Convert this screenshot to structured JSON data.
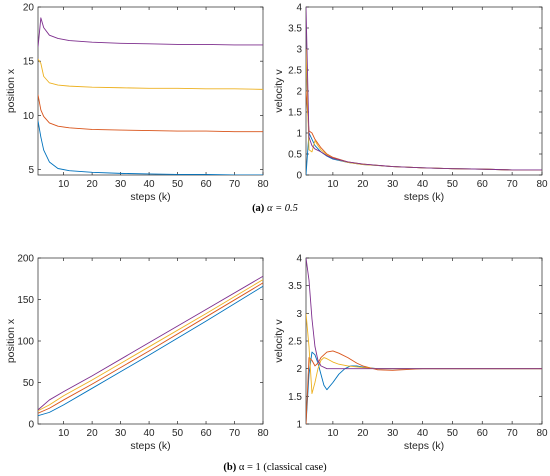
{
  "colors": {
    "series1": "#0072BD",
    "series2": "#D95319",
    "series3": "#EDB120",
    "series4": "#7E2F8E"
  },
  "captions": {
    "a_bold": "(a)",
    "a_text": " α = 0.5",
    "b_bold": "(b)",
    "b_text": " α = 1 (classical case)"
  },
  "chart_data": [
    {
      "id": "a-position",
      "type": "line",
      "xlabel": "steps (k)",
      "ylabel": "position x",
      "xlim": [
        1,
        80
      ],
      "ylim": [
        4.5,
        20
      ],
      "xticks": [
        10,
        20,
        30,
        40,
        50,
        60,
        70,
        80
      ],
      "yticks": [
        5,
        10,
        15,
        20
      ],
      "series": [
        {
          "x": [
            1,
            2,
            3,
            5,
            8,
            12,
            20,
            30,
            40,
            50,
            60,
            70,
            80
          ],
          "values": [
            9.5,
            8.0,
            6.8,
            5.7,
            5.1,
            4.9,
            4.75,
            4.65,
            4.6,
            4.55,
            4.55,
            4.5,
            4.5
          ]
        },
        {
          "x": [
            1,
            2,
            3,
            5,
            8,
            12,
            20,
            30,
            40,
            50,
            60,
            70,
            80
          ],
          "values": [
            11.9,
            10.5,
            9.9,
            9.3,
            9.0,
            8.85,
            8.7,
            8.65,
            8.6,
            8.55,
            8.55,
            8.5,
            8.5
          ]
        },
        {
          "x": [
            1,
            2,
            3,
            5,
            8,
            12,
            20,
            30,
            40,
            50,
            60,
            70,
            80
          ],
          "values": [
            15.2,
            14.8,
            13.6,
            13.0,
            12.8,
            12.7,
            12.6,
            12.55,
            12.5,
            12.5,
            12.45,
            12.45,
            12.4
          ]
        },
        {
          "x": [
            1,
            2,
            3,
            5,
            8,
            12,
            20,
            30,
            40,
            50,
            60,
            70,
            80
          ],
          "values": [
            16.3,
            19.0,
            18.1,
            17.4,
            17.1,
            16.9,
            16.75,
            16.65,
            16.6,
            16.55,
            16.55,
            16.5,
            16.5
          ]
        }
      ]
    },
    {
      "id": "a-velocity",
      "type": "line",
      "xlabel": "steps (k)",
      "ylabel": "velocity v",
      "xlim": [
        1,
        80
      ],
      "ylim": [
        0,
        4
      ],
      "xticks": [
        10,
        20,
        30,
        40,
        50,
        60,
        70,
        80
      ],
      "yticks": [
        0,
        0.5,
        1,
        1.5,
        2,
        2.5,
        3,
        3.5,
        4
      ],
      "series": [
        {
          "x": [
            1,
            2,
            3,
            4,
            6,
            8,
            10,
            15,
            20,
            30,
            40,
            50,
            60,
            70,
            80
          ],
          "values": [
            0.0,
            1.0,
            0.85,
            0.7,
            0.55,
            0.45,
            0.38,
            0.3,
            0.25,
            0.2,
            0.17,
            0.15,
            0.14,
            0.12,
            0.12
          ]
        },
        {
          "x": [
            1,
            2,
            3,
            4,
            6,
            8,
            10,
            15,
            20,
            30,
            40,
            50,
            60,
            70,
            80
          ],
          "values": [
            2.0,
            1.05,
            1.0,
            0.85,
            0.65,
            0.5,
            0.42,
            0.31,
            0.26,
            0.2,
            0.17,
            0.15,
            0.14,
            0.12,
            0.12
          ]
        },
        {
          "x": [
            1,
            2,
            3,
            4,
            5,
            6,
            8,
            10,
            15,
            20,
            30,
            40,
            50,
            60,
            70,
            80
          ],
          "values": [
            3.0,
            0.6,
            0.55,
            0.82,
            0.7,
            0.6,
            0.48,
            0.4,
            0.3,
            0.25,
            0.2,
            0.17,
            0.15,
            0.14,
            0.12,
            0.12
          ]
        },
        {
          "x": [
            1,
            2,
            3,
            4,
            6,
            8,
            10,
            15,
            20,
            30,
            40,
            50,
            60,
            70,
            80
          ],
          "values": [
            4.0,
            0.9,
            0.7,
            0.62,
            0.55,
            0.46,
            0.4,
            0.31,
            0.26,
            0.2,
            0.17,
            0.15,
            0.14,
            0.12,
            0.12
          ]
        }
      ]
    },
    {
      "id": "b-position",
      "type": "line",
      "xlabel": "steps (k)",
      "ylabel": "position x",
      "xlim": [
        1,
        80
      ],
      "ylim": [
        0,
        200
      ],
      "xticks": [
        10,
        20,
        30,
        40,
        50,
        60,
        70,
        80
      ],
      "yticks": [
        0,
        50,
        100,
        150,
        200
      ],
      "series": [
        {
          "x": [
            1,
            5,
            10,
            20,
            40,
            60,
            80
          ],
          "values": [
            10,
            14,
            23,
            43,
            83,
            124,
            166
          ]
        },
        {
          "x": [
            1,
            5,
            10,
            20,
            40,
            60,
            80
          ],
          "values": [
            13,
            19,
            29,
            48,
            88,
            129,
            170
          ]
        },
        {
          "x": [
            1,
            5,
            10,
            20,
            40,
            60,
            80
          ],
          "values": [
            16,
            23,
            34,
            53,
            93,
            133,
            174
          ]
        },
        {
          "x": [
            1,
            5,
            10,
            20,
            40,
            60,
            80
          ],
          "values": [
            17,
            29,
            39,
            58,
            98,
            138,
            178
          ]
        }
      ]
    },
    {
      "id": "b-velocity",
      "type": "line",
      "xlabel": "steps (k)",
      "ylabel": "velocity v",
      "xlim": [
        1,
        80
      ],
      "ylim": [
        1,
        4
      ],
      "xticks": [
        10,
        20,
        30,
        40,
        50,
        60,
        70,
        80
      ],
      "yticks": [
        1,
        1.5,
        2,
        2.5,
        3,
        3.5,
        4
      ],
      "series": [
        {
          "x": [
            1,
            2,
            3,
            4,
            5,
            6,
            7,
            8,
            10,
            12,
            14,
            16,
            18,
            20,
            25,
            30,
            40,
            80
          ],
          "values": [
            1.0,
            1.9,
            2.3,
            2.25,
            2.1,
            1.9,
            1.7,
            1.62,
            1.75,
            1.9,
            2.0,
            2.05,
            2.05,
            2.03,
            2.0,
            2.0,
            2.0,
            2.0
          ]
        },
        {
          "x": [
            1,
            2,
            3,
            4,
            5,
            6,
            8,
            10,
            12,
            15,
            18,
            20,
            25,
            30,
            40,
            80
          ],
          "values": [
            1.0,
            2.2,
            2.15,
            2.05,
            2.1,
            2.2,
            2.3,
            2.32,
            2.28,
            2.2,
            2.1,
            2.05,
            1.98,
            1.97,
            2.0,
            2.0
          ]
        },
        {
          "x": [
            1,
            2,
            3,
            4,
            5,
            6,
            7,
            8,
            10,
            12,
            15,
            20,
            25,
            30,
            40,
            80
          ],
          "values": [
            3.0,
            2.4,
            1.55,
            1.75,
            2.0,
            2.15,
            2.2,
            2.18,
            2.12,
            2.08,
            2.05,
            2.02,
            2.0,
            2.0,
            2.0,
            2.0
          ]
        },
        {
          "x": [
            1,
            2,
            3,
            4,
            5,
            6,
            8,
            10,
            15,
            20,
            80
          ],
          "values": [
            4.0,
            3.6,
            2.9,
            2.4,
            2.15,
            2.05,
            2.0,
            2.0,
            2.0,
            2.0,
            2.0
          ]
        }
      ]
    }
  ]
}
